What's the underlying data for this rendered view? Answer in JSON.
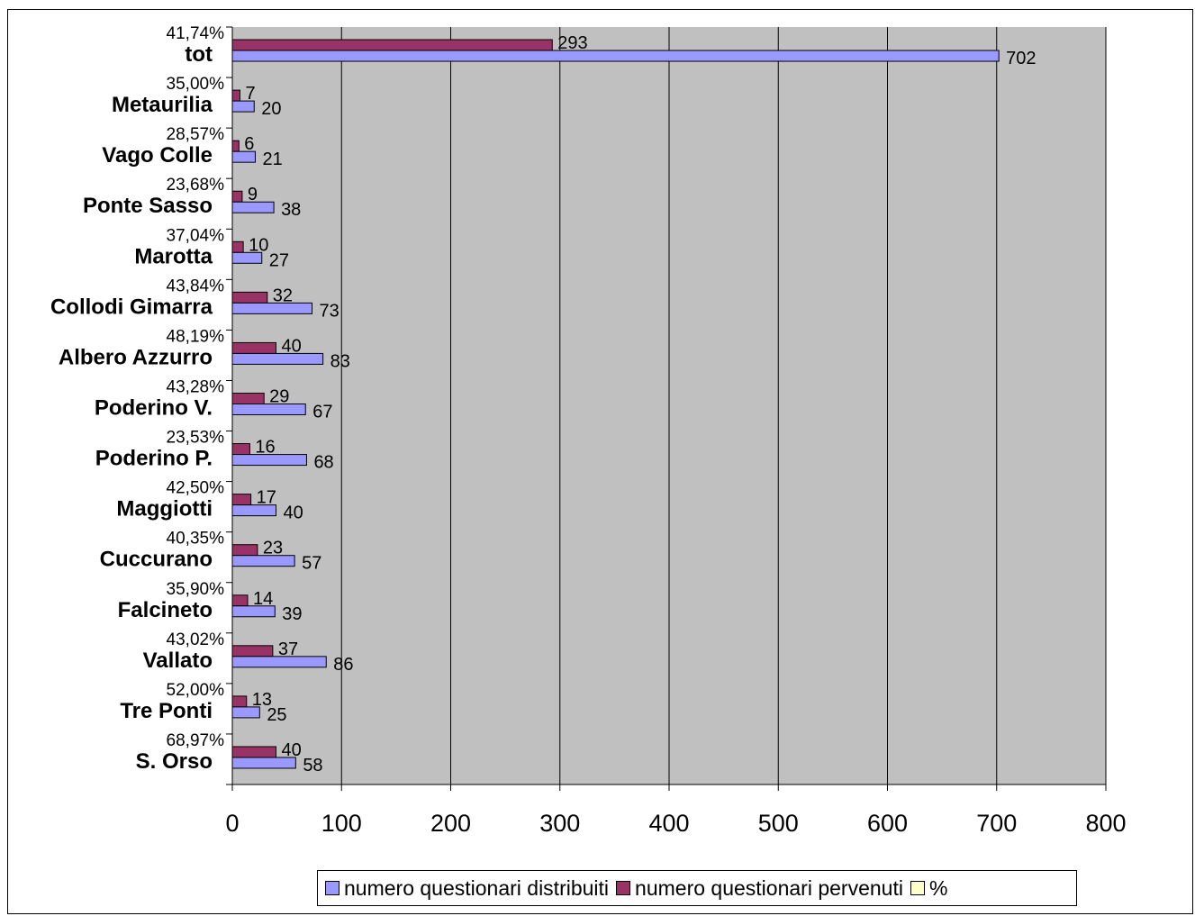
{
  "chart_data": {
    "type": "bar",
    "orientation": "horizontal",
    "categories": [
      "tot",
      "Metaurilia",
      "Vago Colle",
      "Ponte Sasso",
      "Marotta",
      "Collodi Gimarra",
      "Albero Azzurro",
      "Poderino V.",
      "Poderino P.",
      "Maggiotti",
      "Cuccurano",
      "Falcineto",
      "Vallato",
      "Tre Ponti",
      "S. Orso"
    ],
    "series": [
      {
        "name": "numero questionari distribuiti",
        "color": "#9999ff",
        "values": [
          702,
          20,
          21,
          38,
          27,
          73,
          83,
          67,
          68,
          40,
          57,
          39,
          86,
          25,
          58
        ]
      },
      {
        "name": "numero questionari pervenuti",
        "color": "#993366",
        "values": [
          293,
          7,
          6,
          9,
          10,
          32,
          40,
          29,
          16,
          17,
          23,
          14,
          37,
          13,
          40
        ]
      },
      {
        "name": "%",
        "color": "#ffffcc",
        "values": [
          0.4174,
          0.35,
          0.2857,
          0.2368,
          0.3704,
          0.4384,
          0.4819,
          0.4328,
          0.2353,
          0.425,
          0.4035,
          0.359,
          0.4302,
          0.52,
          0.6897
        ]
      }
    ],
    "percent_labels": [
      "41,74%",
      "35,00%",
      "28,57%",
      "23,68%",
      "37,04%",
      "43,84%",
      "48,19%",
      "43,28%",
      "23,53%",
      "42,50%",
      "40,35%",
      "35,90%",
      "43,02%",
      "52,00%",
      "68,97%"
    ],
    "xlim": [
      0,
      800
    ],
    "xticks": [
      "0",
      "100",
      "200",
      "300",
      "400",
      "500",
      "600",
      "700",
      "800"
    ],
    "grid": "vertical",
    "plot_background": "#c0c0c0",
    "legend_position": "bottom"
  }
}
